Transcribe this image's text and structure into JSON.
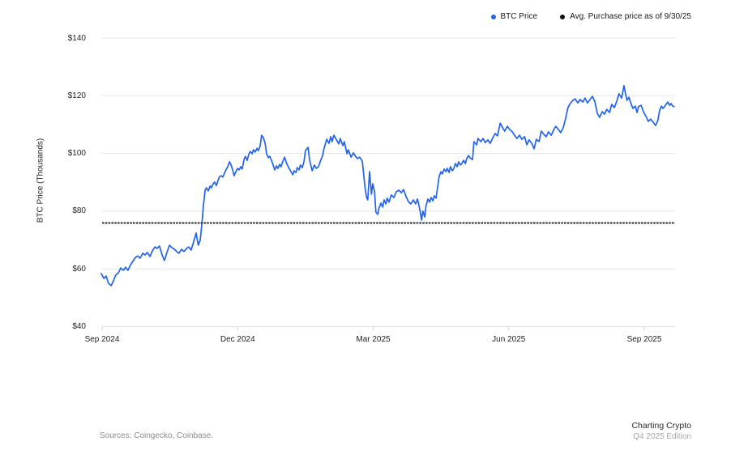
{
  "legend": {
    "items": [
      {
        "label": "BTC Price",
        "color": "#2163f0"
      },
      {
        "label": "Avg. Purchase price as of 9/30/25",
        "color": "#111111"
      }
    ]
  },
  "footer": {
    "sources": "Sources: Coingecko, Coinbase.",
    "brand_title": "Charting Crypto",
    "brand_subtitle": "Q4 2025 Edition"
  },
  "chart_data": {
    "type": "line",
    "title": "",
    "xlabel": "",
    "ylabel": "BTC Price (Thousands)",
    "ylim": [
      40,
      140
    ],
    "xlim_months": [
      -0.05,
      12.7
    ],
    "grid": true,
    "legend_position": "top-right",
    "y_ticks": [
      {
        "label": "$140",
        "value": 140
      },
      {
        "label": "$120",
        "value": 120
      },
      {
        "label": "$100",
        "value": 100
      },
      {
        "label": "$80",
        "value": 80
      },
      {
        "label": "$60",
        "value": 60
      },
      {
        "label": "$40",
        "value": 40
      }
    ],
    "x_ticks": [
      {
        "label": "Sep 2024",
        "t": 0
      },
      {
        "label": "Dec 2024",
        "t": 3
      },
      {
        "label": "Mar 2025",
        "t": 6
      },
      {
        "label": "Jun 2025",
        "t": 9
      },
      {
        "label": "Sep 2025",
        "t": 12
      }
    ],
    "series": [
      {
        "name": "BTC Price",
        "kind": "line",
        "color": "#2163f0",
        "points": [
          [
            -0.02,
            58.4
          ],
          [
            0.04,
            56.7
          ],
          [
            0.09,
            57.5
          ],
          [
            0.14,
            55.0
          ],
          [
            0.2,
            54.2
          ],
          [
            0.25,
            55.8
          ],
          [
            0.3,
            57.8
          ],
          [
            0.36,
            58.6
          ],
          [
            0.41,
            60.3
          ],
          [
            0.47,
            59.5
          ],
          [
            0.52,
            60.6
          ],
          [
            0.57,
            59.5
          ],
          [
            0.63,
            61.4
          ],
          [
            0.68,
            62.6
          ],
          [
            0.74,
            64.0
          ],
          [
            0.79,
            64.5
          ],
          [
            0.84,
            63.7
          ],
          [
            0.9,
            65.4
          ],
          [
            0.95,
            64.8
          ],
          [
            1.0,
            65.7
          ],
          [
            1.06,
            64.3
          ],
          [
            1.11,
            66.2
          ],
          [
            1.17,
            67.6
          ],
          [
            1.22,
            67.1
          ],
          [
            1.27,
            67.9
          ],
          [
            1.33,
            64.8
          ],
          [
            1.38,
            62.9
          ],
          [
            1.43,
            65.4
          ],
          [
            1.49,
            68.2
          ],
          [
            1.54,
            67.4
          ],
          [
            1.6,
            66.8
          ],
          [
            1.65,
            66.0
          ],
          [
            1.7,
            65.4
          ],
          [
            1.76,
            66.8
          ],
          [
            1.81,
            66.0
          ],
          [
            1.87,
            67.1
          ],
          [
            1.92,
            67.6
          ],
          [
            1.97,
            66.5
          ],
          [
            2.03,
            69.6
          ],
          [
            2.08,
            72.4
          ],
          [
            2.13,
            68.2
          ],
          [
            2.17,
            69.9
          ],
          [
            2.21,
            75.8
          ],
          [
            2.24,
            81.7
          ],
          [
            2.28,
            87.3
          ],
          [
            2.31,
            88.1
          ],
          [
            2.35,
            87.0
          ],
          [
            2.39,
            88.7
          ],
          [
            2.42,
            88.1
          ],
          [
            2.46,
            89.5
          ],
          [
            2.49,
            90.1
          ],
          [
            2.53,
            88.9
          ],
          [
            2.57,
            90.9
          ],
          [
            2.6,
            92.0
          ],
          [
            2.64,
            92.3
          ],
          [
            2.67,
            91.8
          ],
          [
            2.71,
            93.2
          ],
          [
            2.74,
            94.3
          ],
          [
            2.78,
            95.4
          ],
          [
            2.82,
            97.1
          ],
          [
            2.85,
            96.2
          ],
          [
            2.89,
            94.3
          ],
          [
            2.92,
            92.3
          ],
          [
            2.96,
            93.7
          ],
          [
            3.0,
            94.8
          ],
          [
            3.03,
            94.3
          ],
          [
            3.07,
            95.4
          ],
          [
            3.1,
            94.6
          ],
          [
            3.14,
            97.9
          ],
          [
            3.17,
            99.0
          ],
          [
            3.21,
            97.6
          ],
          [
            3.25,
            99.9
          ],
          [
            3.28,
            100.7
          ],
          [
            3.32,
            99.9
          ],
          [
            3.35,
            101.3
          ],
          [
            3.39,
            100.5
          ],
          [
            3.43,
            101.8
          ],
          [
            3.46,
            101.0
          ],
          [
            3.5,
            102.7
          ],
          [
            3.53,
            106.3
          ],
          [
            3.57,
            105.5
          ],
          [
            3.61,
            103.3
          ],
          [
            3.64,
            99.9
          ],
          [
            3.68,
            98.5
          ],
          [
            3.71,
            99.0
          ],
          [
            3.75,
            97.6
          ],
          [
            3.78,
            96.2
          ],
          [
            3.82,
            94.3
          ],
          [
            3.86,
            95.7
          ],
          [
            3.89,
            94.8
          ],
          [
            3.93,
            96.2
          ],
          [
            3.96,
            95.4
          ],
          [
            4.0,
            97.3
          ],
          [
            4.04,
            98.7
          ],
          [
            4.07,
            97.1
          ],
          [
            4.11,
            95.7
          ],
          [
            4.14,
            94.8
          ],
          [
            4.18,
            93.7
          ],
          [
            4.22,
            92.6
          ],
          [
            4.25,
            94.0
          ],
          [
            4.29,
            93.4
          ],
          [
            4.32,
            95.1
          ],
          [
            4.36,
            94.3
          ],
          [
            4.39,
            96.0
          ],
          [
            4.43,
            95.1
          ],
          [
            4.47,
            97.3
          ],
          [
            4.5,
            101.0
          ],
          [
            4.56,
            102.1
          ],
          [
            4.59,
            97.9
          ],
          [
            4.65,
            94.0
          ],
          [
            4.7,
            96.0
          ],
          [
            4.74,
            94.8
          ],
          [
            4.79,
            95.4
          ],
          [
            4.83,
            97.3
          ],
          [
            4.88,
            99.3
          ],
          [
            4.91,
            101.6
          ],
          [
            4.97,
            104.9
          ],
          [
            5.02,
            103.5
          ],
          [
            5.06,
            105.8
          ],
          [
            5.09,
            104.1
          ],
          [
            5.13,
            106.3
          ],
          [
            5.18,
            104.9
          ],
          [
            5.24,
            103.3
          ],
          [
            5.27,
            105.2
          ],
          [
            5.33,
            102.7
          ],
          [
            5.36,
            104.1
          ],
          [
            5.42,
            99.9
          ],
          [
            5.45,
            101.3
          ],
          [
            5.51,
            98.7
          ],
          [
            5.56,
            100.2
          ],
          [
            5.61,
            99.0
          ],
          [
            5.65,
            98.2
          ],
          [
            5.7,
            98.7
          ],
          [
            5.76,
            97.3
          ],
          [
            5.81,
            89.5
          ],
          [
            5.85,
            85.0
          ],
          [
            5.88,
            83.9
          ],
          [
            5.92,
            93.7
          ],
          [
            5.96,
            85.9
          ],
          [
            5.99,
            89.5
          ],
          [
            6.03,
            86.7
          ],
          [
            6.06,
            79.7
          ],
          [
            6.1,
            78.9
          ],
          [
            6.13,
            81.1
          ],
          [
            6.17,
            82.8
          ],
          [
            6.21,
            81.4
          ],
          [
            6.24,
            83.9
          ],
          [
            6.28,
            82.5
          ],
          [
            6.31,
            84.5
          ],
          [
            6.35,
            83.1
          ],
          [
            6.4,
            85.6
          ],
          [
            6.46,
            84.7
          ],
          [
            6.51,
            86.7
          ],
          [
            6.57,
            87.3
          ],
          [
            6.62,
            86.4
          ],
          [
            6.67,
            87.5
          ],
          [
            6.73,
            85.0
          ],
          [
            6.78,
            83.3
          ],
          [
            6.83,
            82.5
          ],
          [
            6.89,
            83.9
          ],
          [
            6.94,
            82.5
          ],
          [
            6.98,
            84.2
          ],
          [
            7.01,
            82.2
          ],
          [
            7.05,
            79.1
          ],
          [
            7.07,
            76.9
          ],
          [
            7.1,
            80.0
          ],
          [
            7.14,
            78.0
          ],
          [
            7.17,
            81.9
          ],
          [
            7.21,
            84.2
          ],
          [
            7.25,
            83.1
          ],
          [
            7.28,
            84.7
          ],
          [
            7.32,
            83.6
          ],
          [
            7.35,
            85.3
          ],
          [
            7.39,
            84.5
          ],
          [
            7.43,
            88.7
          ],
          [
            7.46,
            92.0
          ],
          [
            7.5,
            93.7
          ],
          [
            7.53,
            92.9
          ],
          [
            7.57,
            94.6
          ],
          [
            7.61,
            93.7
          ],
          [
            7.64,
            94.8
          ],
          [
            7.68,
            93.4
          ],
          [
            7.71,
            95.4
          ],
          [
            7.75,
            94.0
          ],
          [
            7.78,
            94.6
          ],
          [
            7.82,
            96.5
          ],
          [
            7.86,
            95.4
          ],
          [
            7.89,
            97.1
          ],
          [
            7.93,
            96.0
          ],
          [
            7.96,
            96.5
          ],
          [
            8.0,
            97.6
          ],
          [
            8.04,
            96.5
          ],
          [
            8.07,
            98.2
          ],
          [
            8.11,
            99.3
          ],
          [
            8.14,
            98.5
          ],
          [
            8.2,
            97.9
          ],
          [
            8.23,
            104.1
          ],
          [
            8.29,
            103.0
          ],
          [
            8.32,
            105.2
          ],
          [
            8.38,
            104.1
          ],
          [
            8.43,
            105.2
          ],
          [
            8.48,
            103.8
          ],
          [
            8.54,
            104.7
          ],
          [
            8.59,
            103.5
          ],
          [
            8.65,
            105.5
          ],
          [
            8.7,
            106.9
          ],
          [
            8.75,
            106.1
          ],
          [
            8.81,
            110.5
          ],
          [
            8.86,
            109.1
          ],
          [
            8.91,
            107.7
          ],
          [
            8.97,
            109.4
          ],
          [
            9.02,
            108.3
          ],
          [
            9.08,
            107.5
          ],
          [
            9.13,
            106.3
          ],
          [
            9.18,
            105.2
          ],
          [
            9.24,
            106.3
          ],
          [
            9.29,
            104.9
          ],
          [
            9.35,
            105.8
          ],
          [
            9.4,
            103.0
          ],
          [
            9.45,
            104.7
          ],
          [
            9.51,
            103.5
          ],
          [
            9.56,
            101.6
          ],
          [
            9.61,
            104.9
          ],
          [
            9.67,
            104.1
          ],
          [
            9.72,
            107.7
          ],
          [
            9.78,
            106.6
          ],
          [
            9.83,
            105.8
          ],
          [
            9.88,
            107.5
          ],
          [
            9.94,
            106.3
          ],
          [
            9.99,
            108.0
          ],
          [
            10.04,
            109.4
          ],
          [
            10.1,
            108.3
          ],
          [
            10.15,
            107.2
          ],
          [
            10.21,
            109.1
          ],
          [
            10.26,
            112.2
          ],
          [
            10.31,
            115.9
          ],
          [
            10.37,
            117.5
          ],
          [
            10.42,
            118.4
          ],
          [
            10.47,
            118.9
          ],
          [
            10.53,
            117.5
          ],
          [
            10.58,
            118.7
          ],
          [
            10.64,
            117.8
          ],
          [
            10.69,
            119.2
          ],
          [
            10.74,
            117.5
          ],
          [
            10.8,
            118.7
          ],
          [
            10.85,
            119.8
          ],
          [
            10.91,
            117.8
          ],
          [
            10.96,
            113.9
          ],
          [
            11.01,
            112.5
          ],
          [
            11.07,
            114.5
          ],
          [
            11.12,
            113.6
          ],
          [
            11.17,
            115.3
          ],
          [
            11.23,
            114.2
          ],
          [
            11.28,
            117.0
          ],
          [
            11.34,
            115.9
          ],
          [
            11.39,
            118.1
          ],
          [
            11.44,
            120.7
          ],
          [
            11.5,
            119.2
          ],
          [
            11.55,
            123.5
          ],
          [
            11.59,
            120.4
          ],
          [
            11.62,
            118.4
          ],
          [
            11.66,
            119.5
          ],
          [
            11.7,
            117.5
          ],
          [
            11.75,
            115.6
          ],
          [
            11.8,
            116.4
          ],
          [
            11.84,
            114.2
          ],
          [
            11.87,
            116.2
          ],
          [
            11.93,
            116.7
          ],
          [
            11.98,
            114.5
          ],
          [
            12.04,
            112.8
          ],
          [
            12.09,
            111.1
          ],
          [
            12.14,
            111.9
          ],
          [
            12.2,
            110.8
          ],
          [
            12.25,
            109.7
          ],
          [
            12.3,
            111.4
          ],
          [
            12.34,
            115.0
          ],
          [
            12.38,
            116.4
          ],
          [
            12.41,
            115.6
          ],
          [
            12.45,
            116.2
          ],
          [
            12.48,
            117.0
          ],
          [
            12.52,
            117.8
          ],
          [
            12.56,
            116.7
          ],
          [
            12.59,
            117.3
          ],
          [
            12.63,
            116.4
          ],
          [
            12.66,
            116.2
          ]
        ]
      },
      {
        "name": "Avg. Purchase price as of 9/30/25",
        "kind": "hline",
        "color": "#111111",
        "value": 75.9,
        "style": "dashed"
      }
    ]
  }
}
